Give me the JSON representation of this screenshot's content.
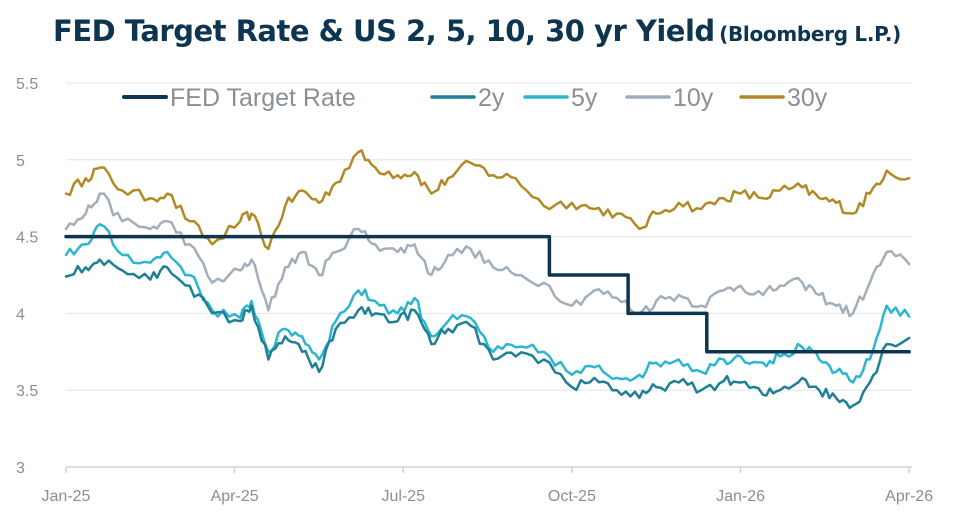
{
  "chart_data": {
    "type": "line",
    "title": "FED Target Rate & US 2, 5, 10, 30 yr Yield",
    "source": "(Bloomberg L.P.)",
    "xlabel": "",
    "ylabel": "",
    "ylim": [
      3,
      5.5
    ],
    "yticks": [
      "5.5",
      "5",
      "4.5",
      "4",
      "3.5",
      "3"
    ],
    "xticks": [
      "Jan-25",
      "Apr-25",
      "Jul-25",
      "Oct-25",
      "Jan-26",
      "Apr-26"
    ],
    "x_domain_months": [
      0,
      15.05
    ],
    "legend": "top",
    "grid": "horizontal",
    "series": [
      {
        "name": "FED Target Rate",
        "color": "#0d3550",
        "step": true,
        "x": [
          0,
          8.6,
          8.6,
          10.0,
          10.0,
          11.4,
          11.4,
          15.0
        ],
        "values": [
          4.5,
          4.5,
          4.25,
          4.25,
          4.0,
          4.0,
          3.75,
          3.75
        ]
      },
      {
        "name": "2y",
        "color": "#1f7f95",
        "x": [
          0,
          0.35,
          0.6,
          1.0,
          1.5,
          1.8,
          2.2,
          2.6,
          3.1,
          3.3,
          3.6,
          3.9,
          4.2,
          4.5,
          4.8,
          5.2,
          5.5,
          5.9,
          6.2,
          6.5,
          6.8,
          7.2,
          7.6,
          8.0,
          8.5,
          9.0,
          9.4,
          9.8,
          10.2,
          10.5,
          10.9,
          11.3,
          11.7,
          12.0,
          12.4,
          12.7,
          13.1,
          13.4,
          13.7,
          14.0,
          14.3,
          14.6,
          15.0
        ],
        "values": [
          4.24,
          4.3,
          4.35,
          4.28,
          4.22,
          4.3,
          4.18,
          4.0,
          3.95,
          4.05,
          3.7,
          3.85,
          3.75,
          3.62,
          3.9,
          4.02,
          4.0,
          3.95,
          4.02,
          3.8,
          3.9,
          3.92,
          3.7,
          3.72,
          3.7,
          3.52,
          3.58,
          3.5,
          3.45,
          3.52,
          3.55,
          3.5,
          3.56,
          3.55,
          3.47,
          3.5,
          3.58,
          3.5,
          3.45,
          3.4,
          3.55,
          3.8,
          3.84
        ]
      },
      {
        "name": "5y",
        "color": "#2bb6cf",
        "x": [
          0,
          0.35,
          0.6,
          1.0,
          1.5,
          1.8,
          2.2,
          2.6,
          3.1,
          3.3,
          3.6,
          3.9,
          4.2,
          4.5,
          4.8,
          5.2,
          5.5,
          5.9,
          6.2,
          6.5,
          6.8,
          7.2,
          7.6,
          8.0,
          8.5,
          9.0,
          9.4,
          9.8,
          10.2,
          10.5,
          10.9,
          11.3,
          11.7,
          12.0,
          12.4,
          12.7,
          13.1,
          13.4,
          13.7,
          14.0,
          14.3,
          14.6,
          15.0
        ],
        "values": [
          4.38,
          4.45,
          4.58,
          4.38,
          4.33,
          4.4,
          4.25,
          4.02,
          3.97,
          4.08,
          3.75,
          3.9,
          3.85,
          3.7,
          3.95,
          4.15,
          4.08,
          4.0,
          4.1,
          3.85,
          3.95,
          3.97,
          3.75,
          3.78,
          3.75,
          3.6,
          3.65,
          3.58,
          3.6,
          3.68,
          3.7,
          3.62,
          3.7,
          3.72,
          3.68,
          3.72,
          3.78,
          3.7,
          3.62,
          3.55,
          3.7,
          4.05,
          3.98
        ]
      },
      {
        "name": "10y",
        "color": "#a2aeba",
        "x": [
          0,
          0.35,
          0.6,
          1.0,
          1.5,
          1.8,
          2.2,
          2.6,
          3.1,
          3.3,
          3.6,
          3.9,
          4.2,
          4.5,
          4.8,
          5.2,
          5.5,
          5.9,
          6.2,
          6.5,
          6.8,
          7.2,
          7.6,
          8.0,
          8.5,
          9.0,
          9.4,
          9.8,
          10.2,
          10.5,
          10.9,
          11.3,
          11.7,
          12.0,
          12.4,
          12.7,
          13.1,
          13.4,
          13.7,
          14.0,
          14.3,
          14.6,
          15.0
        ],
        "values": [
          4.55,
          4.65,
          4.78,
          4.6,
          4.55,
          4.6,
          4.45,
          4.2,
          4.28,
          4.35,
          4.02,
          4.3,
          4.4,
          4.25,
          4.4,
          4.55,
          4.45,
          4.4,
          4.45,
          4.25,
          4.38,
          4.42,
          4.3,
          4.25,
          4.2,
          4.05,
          4.15,
          4.1,
          4.0,
          4.08,
          4.12,
          4.05,
          4.15,
          4.18,
          4.12,
          4.18,
          4.2,
          4.12,
          4.05,
          4.0,
          4.2,
          4.4,
          4.32
        ]
      },
      {
        "name": "30y",
        "color": "#b08a25",
        "x": [
          0,
          0.35,
          0.6,
          1.0,
          1.5,
          1.8,
          2.2,
          2.6,
          3.1,
          3.3,
          3.6,
          3.9,
          4.2,
          4.5,
          4.8,
          5.2,
          5.5,
          5.9,
          6.2,
          6.5,
          6.8,
          7.2,
          7.6,
          8.0,
          8.5,
          9.0,
          9.4,
          9.8,
          10.2,
          10.5,
          10.9,
          11.3,
          11.7,
          12.0,
          12.4,
          12.7,
          13.1,
          13.4,
          13.7,
          14.0,
          14.3,
          14.6,
          15.0
        ],
        "values": [
          4.78,
          4.88,
          4.95,
          4.8,
          4.75,
          4.78,
          4.6,
          4.45,
          4.6,
          4.65,
          4.42,
          4.7,
          4.8,
          4.72,
          4.85,
          5.05,
          4.95,
          4.9,
          4.92,
          4.78,
          4.88,
          4.98,
          4.9,
          4.88,
          4.7,
          4.72,
          4.68,
          4.65,
          4.55,
          4.65,
          4.72,
          4.68,
          4.75,
          4.78,
          4.75,
          4.8,
          4.82,
          4.75,
          4.72,
          4.65,
          4.78,
          4.93,
          4.88
        ]
      }
    ]
  }
}
